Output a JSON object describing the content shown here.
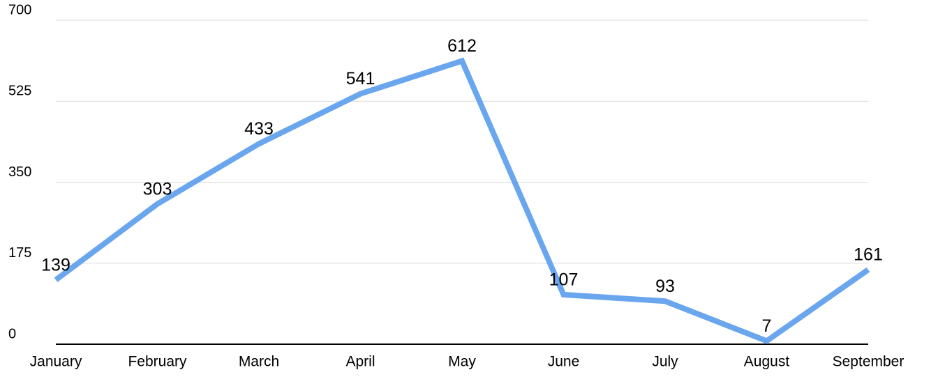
{
  "chart_data": {
    "type": "line",
    "categories": [
      "January",
      "February",
      "March",
      "April",
      "May",
      "June",
      "July",
      "August",
      "September"
    ],
    "values": [
      139,
      303,
      433,
      541,
      612,
      107,
      93,
      7,
      161
    ],
    "color": "#6aa6ee",
    "ylim": [
      0,
      700
    ],
    "yticks": [
      0,
      175,
      350,
      525,
      700
    ],
    "grid": true
  }
}
